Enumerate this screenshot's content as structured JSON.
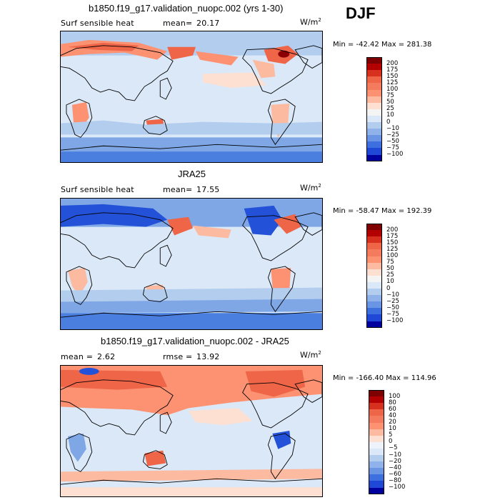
{
  "season": "DJF",
  "colors": {
    "deep_red": "#8b0000",
    "red": "#d7301f",
    "orange_red": "#ef6548",
    "salmon": "#fc9272",
    "light_salmon": "#fcbba1",
    "peach": "#fde0d2",
    "pale_blue": "#dbe8f7",
    "light_blue": "#b3cdee",
    "mid_blue": "#7fa7e6",
    "blue": "#4a7fe0",
    "strong_blue": "#2352d9",
    "deep_blue": "#0000a0"
  },
  "chart_data": [
    {
      "type": "heatmap",
      "title": "b1850.f19_g17.validation_nuopc.002 (yrs 1-30)",
      "variable": "Surf sensible heat",
      "mean_label": "mean=",
      "mean": "20.17",
      "unit": "W/m",
      "unit_exp": "2",
      "min_label": "Min =",
      "min": "-42.42",
      "max_label": "Max =",
      "max": "281.38",
      "levels": [
        "200",
        "175",
        "150",
        "125",
        "100",
        "75",
        "50",
        "25",
        "10",
        "0",
        "-10",
        "-25",
        "-50",
        "-75",
        "-100"
      ],
      "level_colors": [
        "#7f0000",
        "#b30000",
        "#d7301f",
        "#ef6548",
        "#f47b5d",
        "#fc9272",
        "#fcbba1",
        "#fde0d2",
        "#f4f4f4",
        "#dbe8f7",
        "#b3cdee",
        "#8fb2ea",
        "#6a95e4",
        "#3d6fde",
        "#1f48d6",
        "#00009f"
      ]
    },
    {
      "type": "heatmap",
      "title": "JRA25",
      "variable": "Surf sensible heat",
      "mean_label": "mean=",
      "mean": "17.55",
      "unit": "W/m",
      "unit_exp": "2",
      "min_label": "Min =",
      "min": "-58.47",
      "max_label": "Max =",
      "max": "192.39",
      "levels": [
        "200",
        "175",
        "150",
        "125",
        "100",
        "75",
        "50",
        "25",
        "10",
        "0",
        "-10",
        "-25",
        "-50",
        "-75",
        "-100"
      ],
      "level_colors": [
        "#7f0000",
        "#b30000",
        "#d7301f",
        "#ef6548",
        "#f47b5d",
        "#fc9272",
        "#fcbba1",
        "#fde0d2",
        "#f4f4f4",
        "#dbe8f7",
        "#b3cdee",
        "#8fb2ea",
        "#6a95e4",
        "#3d6fde",
        "#1f48d6",
        "#00009f"
      ]
    },
    {
      "type": "heatmap",
      "title": "b1850.f19_g17.validation_nuopc.002 - JRA25",
      "variable": "",
      "mean_label": "mean =",
      "mean": "2.62",
      "rmse_label": "rmse =",
      "rmse": "13.92",
      "unit": "W/m",
      "unit_exp": "2",
      "min_label": "Min =",
      "min": "-166.40",
      "max_label": "Max =",
      "max": "114.96",
      "levels": [
        "100",
        "80",
        "60",
        "40",
        "20",
        "10",
        "5",
        "0",
        "-5",
        "-10",
        "-20",
        "-40",
        "-60",
        "-80",
        "-100"
      ],
      "level_colors": [
        "#7f0000",
        "#b30000",
        "#d7301f",
        "#ef6548",
        "#f47b5d",
        "#fc9272",
        "#fcbba1",
        "#fde0d2",
        "#eef3fb",
        "#dbe8f7",
        "#b3cdee",
        "#8fb2ea",
        "#6a95e4",
        "#3d6fde",
        "#1f48d6",
        "#00009f"
      ]
    }
  ]
}
